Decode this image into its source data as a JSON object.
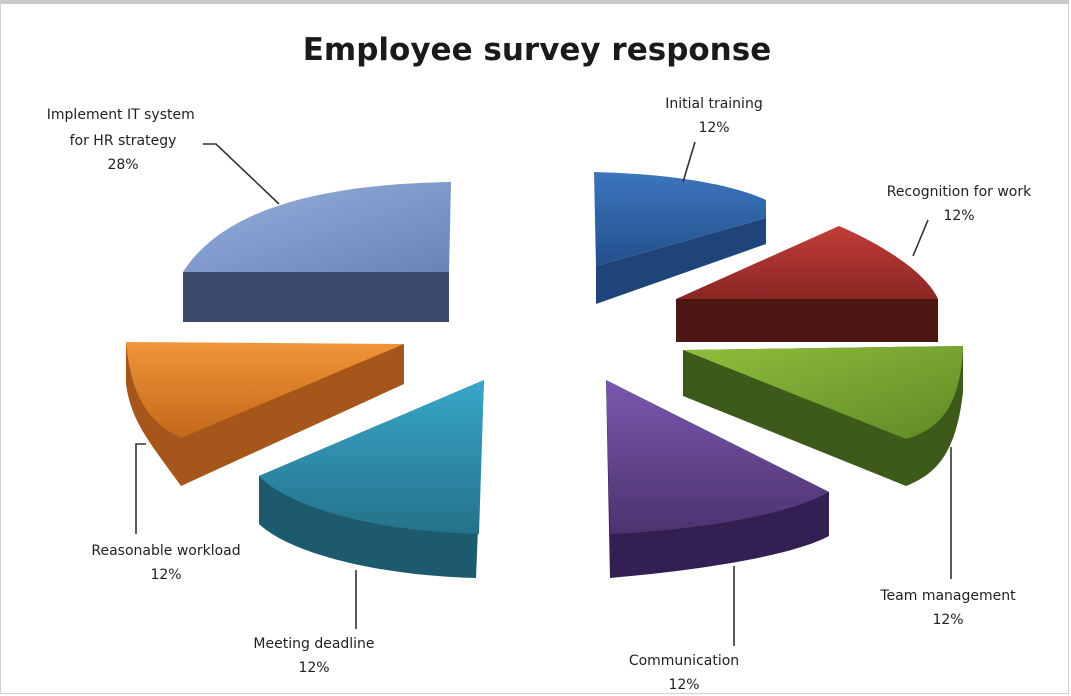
{
  "chart_data": {
    "type": "pie",
    "style": "3d-exploded",
    "title": "Employee survey response",
    "legend": "none",
    "slices": [
      {
        "name": "Initial training",
        "value": 12,
        "label": "12%",
        "color": "#2f64a8"
      },
      {
        "name": "Recognition for work",
        "value": 12,
        "label": "12%",
        "color": "#a8322f"
      },
      {
        "name": "Team management",
        "value": 12,
        "label": "12%",
        "color": "#7eaa32"
      },
      {
        "name": "Communication",
        "value": 12,
        "label": "12%",
        "color": "#6a4a98"
      },
      {
        "name": "Meeting deadline",
        "value": 12,
        "label": "12%",
        "color": "#2f93b3"
      },
      {
        "name": "Reasonable workload",
        "value": 12,
        "label": "12%",
        "color": "#e3841e"
      },
      {
        "name": "Implement IT system for HR strategy",
        "value": 28,
        "label": "28%",
        "color": "#7b97c8"
      }
    ]
  }
}
